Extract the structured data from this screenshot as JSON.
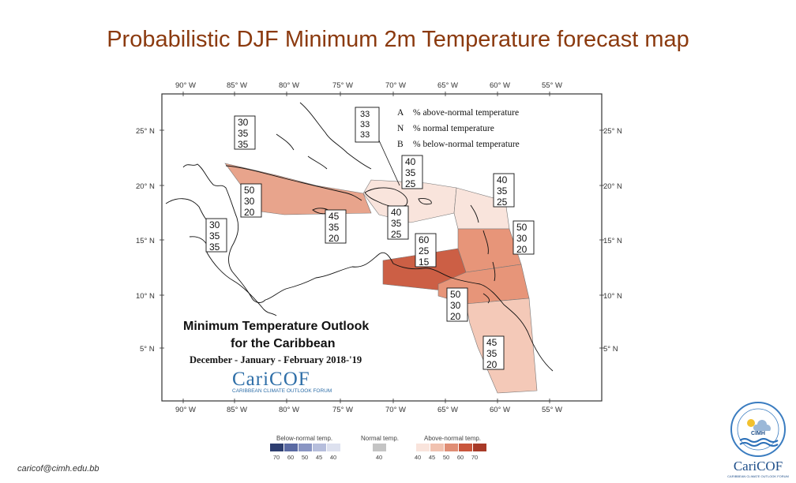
{
  "slide": {
    "title": "Probabilistic DJF Minimum 2m Temperature forecast map",
    "footer_email": "caricof@cimh.edu.bb"
  },
  "map": {
    "lon_labels": [
      "90° W",
      "85° W",
      "80° W",
      "75° W",
      "70° W",
      "65° W",
      "60° W",
      "55° W"
    ],
    "lat_labels": [
      "25° N",
      "20° N",
      "15° N",
      "10° N",
      "5° N"
    ],
    "key": {
      "letters": [
        "A",
        "N",
        "B"
      ],
      "texts": [
        "% above-normal temperature",
        "% normal temperature",
        "% below-normal temperature"
      ],
      "example": [
        "33",
        "33",
        "33"
      ]
    },
    "boxes": [
      {
        "id": "bahamas-north",
        "values": [
          "30",
          "35",
          "35"
        ]
      },
      {
        "id": "cuba",
        "values": [
          "50",
          "30",
          "20"
        ]
      },
      {
        "id": "central-america",
        "values": [
          "30",
          "35",
          "35"
        ]
      },
      {
        "id": "jamaica",
        "values": [
          "45",
          "35",
          "20"
        ]
      },
      {
        "id": "hispaniola",
        "values": [
          "40",
          "35",
          "25"
        ]
      },
      {
        "id": "turks-caicos",
        "values": [
          "40",
          "35",
          "25"
        ]
      },
      {
        "id": "northern-islands",
        "values": [
          "40",
          "35",
          "25"
        ]
      },
      {
        "id": "lesser-antilles",
        "values": [
          "50",
          "30",
          "20"
        ]
      },
      {
        "id": "abc-islands",
        "values": [
          "60",
          "25",
          "15"
        ]
      },
      {
        "id": "trinidad",
        "values": [
          "50",
          "30",
          "20"
        ]
      },
      {
        "id": "guianas",
        "values": [
          "45",
          "35",
          "20"
        ]
      }
    ],
    "outlook_title_1": "Minimum Temperature Outlook",
    "outlook_title_2": "for the Caribbean",
    "season": "December - January - February 2018-'19",
    "brand": "CariCOF",
    "brand_sub": "CARIBBEAN CLIMATE OUTLOOK FORUM",
    "colors": {
      "ramp_40": "#f9e4dc",
      "ramp_45": "#f4c9b8",
      "ramp_50": "#e79579",
      "ramp_60": "#cc5f45"
    }
  },
  "legend": {
    "below_title": "Below-normal temp.",
    "normal_title": "Normal temp.",
    "above_title": "Above-normal temp.",
    "below_ticks": [
      "70",
      "60",
      "50",
      "45",
      "40"
    ],
    "normal_tick": "40",
    "above_ticks": [
      "40",
      "45",
      "50",
      "60",
      "70"
    ],
    "below_colors": [
      "#2d3e70",
      "#5a6aa3",
      "#8995c3",
      "#b6bedc",
      "#dde1ef"
    ],
    "normal_color": "#c4c4c4",
    "above_colors": [
      "#f9e4dc",
      "#f1c2b0",
      "#e08d74",
      "#c9563c",
      "#a83a28"
    ]
  },
  "logo": {
    "org": "CIMH",
    "brand": "CariCOF",
    "brand_sub": "CARIBBEAN CLIMATE OUTLOOK FORUM"
  }
}
